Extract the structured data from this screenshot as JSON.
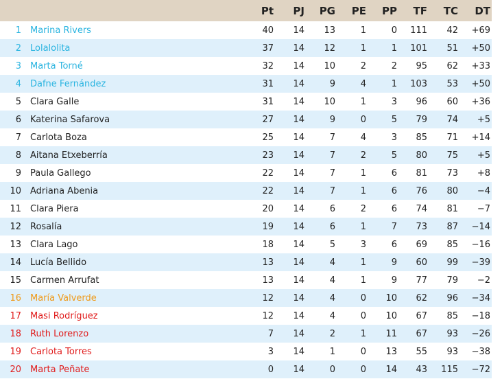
{
  "colors": {
    "header_bg": "#e0d4c3",
    "alt_row_bg": "#dff0fb",
    "qualify_blue": "#2ab4e0",
    "orange": "#ef9a1a",
    "relegation_red": "#e01b1b"
  },
  "columns": [
    "",
    "",
    "Pt",
    "PJ",
    "PG",
    "PE",
    "PP",
    "TF",
    "TC",
    "DT"
  ],
  "rows": [
    {
      "pos": "1",
      "name": "Marina Rivers",
      "pt": "40",
      "pj": "14",
      "pg": "13",
      "pe": "1",
      "pp": "0",
      "tf": "111",
      "tc": "42",
      "dt": "+69",
      "zone": "champ"
    },
    {
      "pos": "2",
      "name": "Lolalolita",
      "pt": "37",
      "pj": "14",
      "pg": "12",
      "pe": "1",
      "pp": "1",
      "tf": "101",
      "tc": "51",
      "dt": "+50",
      "zone": "champ"
    },
    {
      "pos": "3",
      "name": "Marta Torné",
      "pt": "32",
      "pj": "14",
      "pg": "10",
      "pe": "2",
      "pp": "2",
      "tf": "95",
      "tc": "62",
      "dt": "+33",
      "zone": "champ"
    },
    {
      "pos": "4",
      "name": "Dafne Fernández",
      "pt": "31",
      "pj": "14",
      "pg": "9",
      "pe": "4",
      "pp": "1",
      "tf": "103",
      "tc": "53",
      "dt": "+50",
      "zone": "champ"
    },
    {
      "pos": "5",
      "name": "Clara Galle",
      "pt": "31",
      "pj": "14",
      "pg": "10",
      "pe": "1",
      "pp": "3",
      "tf": "96",
      "tc": "60",
      "dt": "+36",
      "zone": ""
    },
    {
      "pos": "6",
      "name": "Katerina Safarova",
      "pt": "27",
      "pj": "14",
      "pg": "9",
      "pe": "0",
      "pp": "5",
      "tf": "79",
      "tc": "74",
      "dt": "+5",
      "zone": ""
    },
    {
      "pos": "7",
      "name": "Carlota Boza",
      "pt": "25",
      "pj": "14",
      "pg": "7",
      "pe": "4",
      "pp": "3",
      "tf": "85",
      "tc": "71",
      "dt": "+14",
      "zone": ""
    },
    {
      "pos": "8",
      "name": "Aitana Etxeberría",
      "pt": "23",
      "pj": "14",
      "pg": "7",
      "pe": "2",
      "pp": "5",
      "tf": "80",
      "tc": "75",
      "dt": "+5",
      "zone": ""
    },
    {
      "pos": "9",
      "name": "Paula Gallego",
      "pt": "22",
      "pj": "14",
      "pg": "7",
      "pe": "1",
      "pp": "6",
      "tf": "81",
      "tc": "73",
      "dt": "+8",
      "zone": ""
    },
    {
      "pos": "10",
      "name": "Adriana Abenia",
      "pt": "22",
      "pj": "14",
      "pg": "7",
      "pe": "1",
      "pp": "6",
      "tf": "76",
      "tc": "80",
      "dt": "−4",
      "zone": ""
    },
    {
      "pos": "11",
      "name": "Clara Piera",
      "pt": "20",
      "pj": "14",
      "pg": "6",
      "pe": "2",
      "pp": "6",
      "tf": "74",
      "tc": "81",
      "dt": "−7",
      "zone": ""
    },
    {
      "pos": "12",
      "name": "Rosalía",
      "pt": "19",
      "pj": "14",
      "pg": "6",
      "pe": "1",
      "pp": "7",
      "tf": "73",
      "tc": "87",
      "dt": "−14",
      "zone": ""
    },
    {
      "pos": "13",
      "name": "Clara Lago",
      "pt": "18",
      "pj": "14",
      "pg": "5",
      "pe": "3",
      "pp": "6",
      "tf": "69",
      "tc": "85",
      "dt": "−16",
      "zone": ""
    },
    {
      "pos": "14",
      "name": "Lucía Bellido",
      "pt": "13",
      "pj": "14",
      "pg": "4",
      "pe": "1",
      "pp": "9",
      "tf": "60",
      "tc": "99",
      "dt": "−39",
      "zone": ""
    },
    {
      "pos": "15",
      "name": "Carmen Arrufat",
      "pt": "13",
      "pj": "14",
      "pg": "4",
      "pe": "1",
      "pp": "9",
      "tf": "77",
      "tc": "79",
      "dt": "−2",
      "zone": ""
    },
    {
      "pos": "16",
      "name": "María Valverde",
      "pt": "12",
      "pj": "14",
      "pg": "4",
      "pe": "0",
      "pp": "10",
      "tf": "62",
      "tc": "96",
      "dt": "−34",
      "zone": "orange"
    },
    {
      "pos": "17",
      "name": "Masi Rodríguez",
      "pt": "12",
      "pj": "14",
      "pg": "4",
      "pe": "0",
      "pp": "10",
      "tf": "67",
      "tc": "85",
      "dt": "−18",
      "zone": "red"
    },
    {
      "pos": "18",
      "name": "Ruth Lorenzo",
      "pt": "7",
      "pj": "14",
      "pg": "2",
      "pe": "1",
      "pp": "11",
      "tf": "67",
      "tc": "93",
      "dt": "−26",
      "zone": "red"
    },
    {
      "pos": "19",
      "name": "Carlota Torres",
      "pt": "3",
      "pj": "14",
      "pg": "1",
      "pe": "0",
      "pp": "13",
      "tf": "55",
      "tc": "93",
      "dt": "−38",
      "zone": "red"
    },
    {
      "pos": "20",
      "name": "Marta Peñate",
      "pt": "0",
      "pj": "14",
      "pg": "0",
      "pe": "0",
      "pp": "14",
      "tf": "43",
      "tc": "115",
      "dt": "−72",
      "zone": "red"
    }
  ]
}
